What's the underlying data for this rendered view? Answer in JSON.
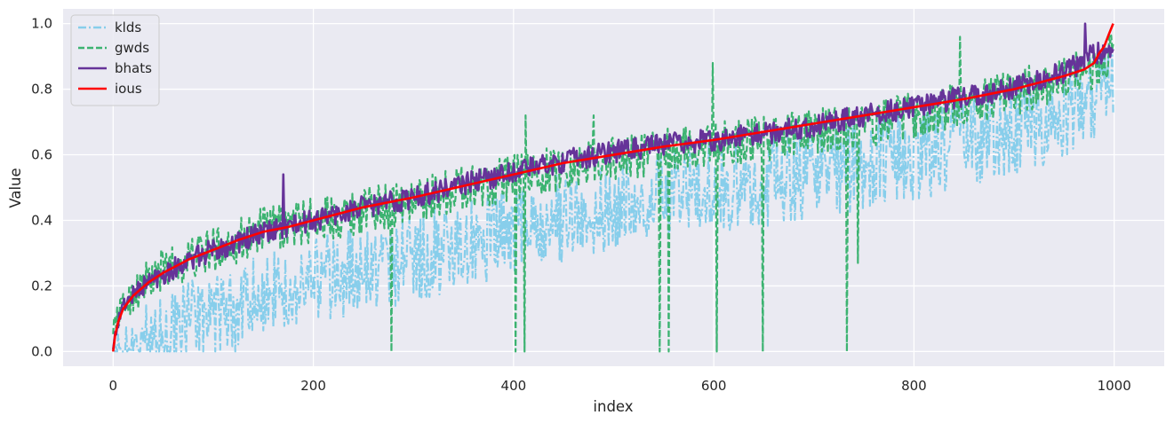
{
  "chart_data": {
    "type": "line",
    "xlabel": "index",
    "ylabel": "Value",
    "xlim": [
      -50,
      1050
    ],
    "ylim": [
      -0.045,
      1.045
    ],
    "xticks": [
      0,
      200,
      400,
      600,
      800,
      1000
    ],
    "yticks": [
      0.0,
      0.2,
      0.4,
      0.6,
      0.8,
      1.0
    ],
    "xtick_labels": [
      "0",
      "200",
      "400",
      "600",
      "800",
      "1000"
    ],
    "ytick_labels": [
      "0.0",
      "0.2",
      "0.4",
      "0.6",
      "0.8",
      "1.0"
    ],
    "grid": true,
    "legend_position": "top-left",
    "n_points": 1000,
    "series": [
      {
        "name": "klds",
        "color": "#87ceeb",
        "style": "dashdot",
        "trend": [
          [
            0,
            0.0
          ],
          [
            25,
            0.04
          ],
          [
            50,
            0.08
          ],
          [
            100,
            0.15
          ],
          [
            150,
            0.21
          ],
          [
            200,
            0.26
          ],
          [
            250,
            0.29
          ],
          [
            300,
            0.33
          ],
          [
            350,
            0.37
          ],
          [
            400,
            0.41
          ],
          [
            450,
            0.45
          ],
          [
            500,
            0.48
          ],
          [
            550,
            0.51
          ],
          [
            600,
            0.54
          ],
          [
            650,
            0.56
          ],
          [
            700,
            0.59
          ],
          [
            750,
            0.61
          ],
          [
            800,
            0.64
          ],
          [
            850,
            0.68
          ],
          [
            900,
            0.72
          ],
          [
            950,
            0.77
          ],
          [
            1000,
            0.87
          ]
        ],
        "spread": 0.14
      },
      {
        "name": "gwds",
        "color": "#3cb371",
        "style": "dashed",
        "trend": [
          [
            0,
            0.08
          ],
          [
            10,
            0.14
          ],
          [
            25,
            0.19
          ],
          [
            50,
            0.25
          ],
          [
            100,
            0.31
          ],
          [
            150,
            0.37
          ],
          [
            200,
            0.4
          ],
          [
            250,
            0.43
          ],
          [
            300,
            0.46
          ],
          [
            350,
            0.5
          ],
          [
            400,
            0.53
          ],
          [
            450,
            0.56
          ],
          [
            500,
            0.59
          ],
          [
            550,
            0.61
          ],
          [
            600,
            0.63
          ],
          [
            650,
            0.65
          ],
          [
            700,
            0.67
          ],
          [
            750,
            0.69
          ],
          [
            800,
            0.72
          ],
          [
            850,
            0.75
          ],
          [
            900,
            0.79
          ],
          [
            950,
            0.83
          ],
          [
            1000,
            0.9
          ]
        ],
        "spread": 0.07,
        "dips": [
          [
            278,
            0.0
          ],
          [
            402,
            0.0
          ],
          [
            411,
            0.0
          ],
          [
            546,
            0.0
          ],
          [
            555,
            0.0
          ],
          [
            603,
            0.0
          ],
          [
            649,
            0.0
          ],
          [
            733,
            0.0
          ],
          [
            744,
            0.27
          ]
        ],
        "spikes": [
          [
            599,
            0.88
          ],
          [
            846,
            0.96
          ],
          [
            480,
            0.72
          ],
          [
            412,
            0.72
          ]
        ]
      },
      {
        "name": "bhats",
        "color": "#663399",
        "style": "solid",
        "trend": [
          [
            0,
            0.02
          ],
          [
            5,
            0.09
          ],
          [
            10,
            0.14
          ],
          [
            25,
            0.19
          ],
          [
            50,
            0.24
          ],
          [
            100,
            0.31
          ],
          [
            150,
            0.36
          ],
          [
            200,
            0.4
          ],
          [
            250,
            0.44
          ],
          [
            300,
            0.47
          ],
          [
            350,
            0.51
          ],
          [
            400,
            0.55
          ],
          [
            450,
            0.58
          ],
          [
            500,
            0.61
          ],
          [
            550,
            0.63
          ],
          [
            600,
            0.645
          ],
          [
            650,
            0.665
          ],
          [
            700,
            0.69
          ],
          [
            750,
            0.72
          ],
          [
            800,
            0.745
          ],
          [
            850,
            0.775
          ],
          [
            900,
            0.805
          ],
          [
            950,
            0.85
          ],
          [
            970,
            0.89
          ],
          [
            1000,
            0.93
          ]
        ],
        "spread": 0.035,
        "spikes": [
          [
            170,
            0.54
          ],
          [
            971,
            1.0
          ]
        ]
      },
      {
        "name": "ious",
        "color": "#ff0000",
        "style": "solid",
        "points": [
          [
            0,
            0.0
          ],
          [
            2,
            0.05
          ],
          [
            5,
            0.09
          ],
          [
            10,
            0.13
          ],
          [
            20,
            0.17
          ],
          [
            35,
            0.21
          ],
          [
            50,
            0.24
          ],
          [
            75,
            0.28
          ],
          [
            100,
            0.31
          ],
          [
            125,
            0.34
          ],
          [
            150,
            0.365
          ],
          [
            175,
            0.38
          ],
          [
            200,
            0.4
          ],
          [
            250,
            0.44
          ],
          [
            300,
            0.47
          ],
          [
            350,
            0.505
          ],
          [
            400,
            0.54
          ],
          [
            450,
            0.575
          ],
          [
            500,
            0.6
          ],
          [
            550,
            0.625
          ],
          [
            600,
            0.645
          ],
          [
            650,
            0.67
          ],
          [
            700,
            0.695
          ],
          [
            750,
            0.72
          ],
          [
            800,
            0.745
          ],
          [
            850,
            0.77
          ],
          [
            900,
            0.8
          ],
          [
            950,
            0.84
          ],
          [
            970,
            0.86
          ],
          [
            980,
            0.88
          ],
          [
            985,
            0.91
          ],
          [
            990,
            0.93
          ],
          [
            995,
            0.97
          ],
          [
            999,
            1.0
          ]
        ]
      }
    ]
  }
}
